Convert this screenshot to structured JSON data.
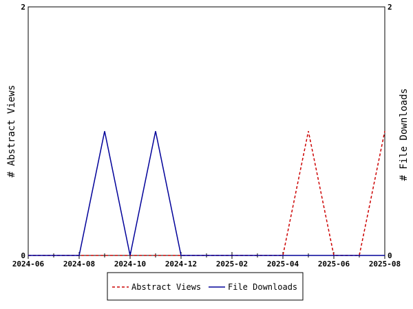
{
  "chart_data": {
    "type": "line",
    "x": [
      "2024-06",
      "2024-07",
      "2024-08",
      "2024-09",
      "2024-10",
      "2024-11",
      "2024-12",
      "2025-01",
      "2025-02",
      "2025-03",
      "2025-04",
      "2025-05",
      "2025-06",
      "2025-07",
      "2025-08"
    ],
    "series": [
      {
        "name": "Abstract Views",
        "axis": "left",
        "color": "#cc0000",
        "style": "dashed",
        "values": [
          0,
          0,
          0,
          0,
          0,
          0,
          0,
          0,
          0,
          0,
          0,
          1,
          0,
          0,
          1
        ]
      },
      {
        "name": "File Downloads",
        "axis": "right",
        "color": "#000099",
        "style": "solid",
        "values": [
          0,
          0,
          0,
          1,
          0,
          1,
          0,
          0,
          0,
          0,
          0,
          0,
          0,
          0,
          0
        ]
      }
    ],
    "x_tick_labels": [
      "2024-06",
      "2024-08",
      "2024-10",
      "2024-12",
      "2025-02",
      "2025-04",
      "2025-06",
      "2025-08"
    ],
    "ylabel_left": "# Abstract Views",
    "ylabel_right": "# File Downloads",
    "ylim_left": [
      0,
      2
    ],
    "ylim_right": [
      0,
      2
    ],
    "y_tick_labels_left": [
      "0",
      "2"
    ],
    "y_tick_labels_right": [
      "0",
      "2"
    ],
    "legend_position": "bottom",
    "grid": false
  }
}
